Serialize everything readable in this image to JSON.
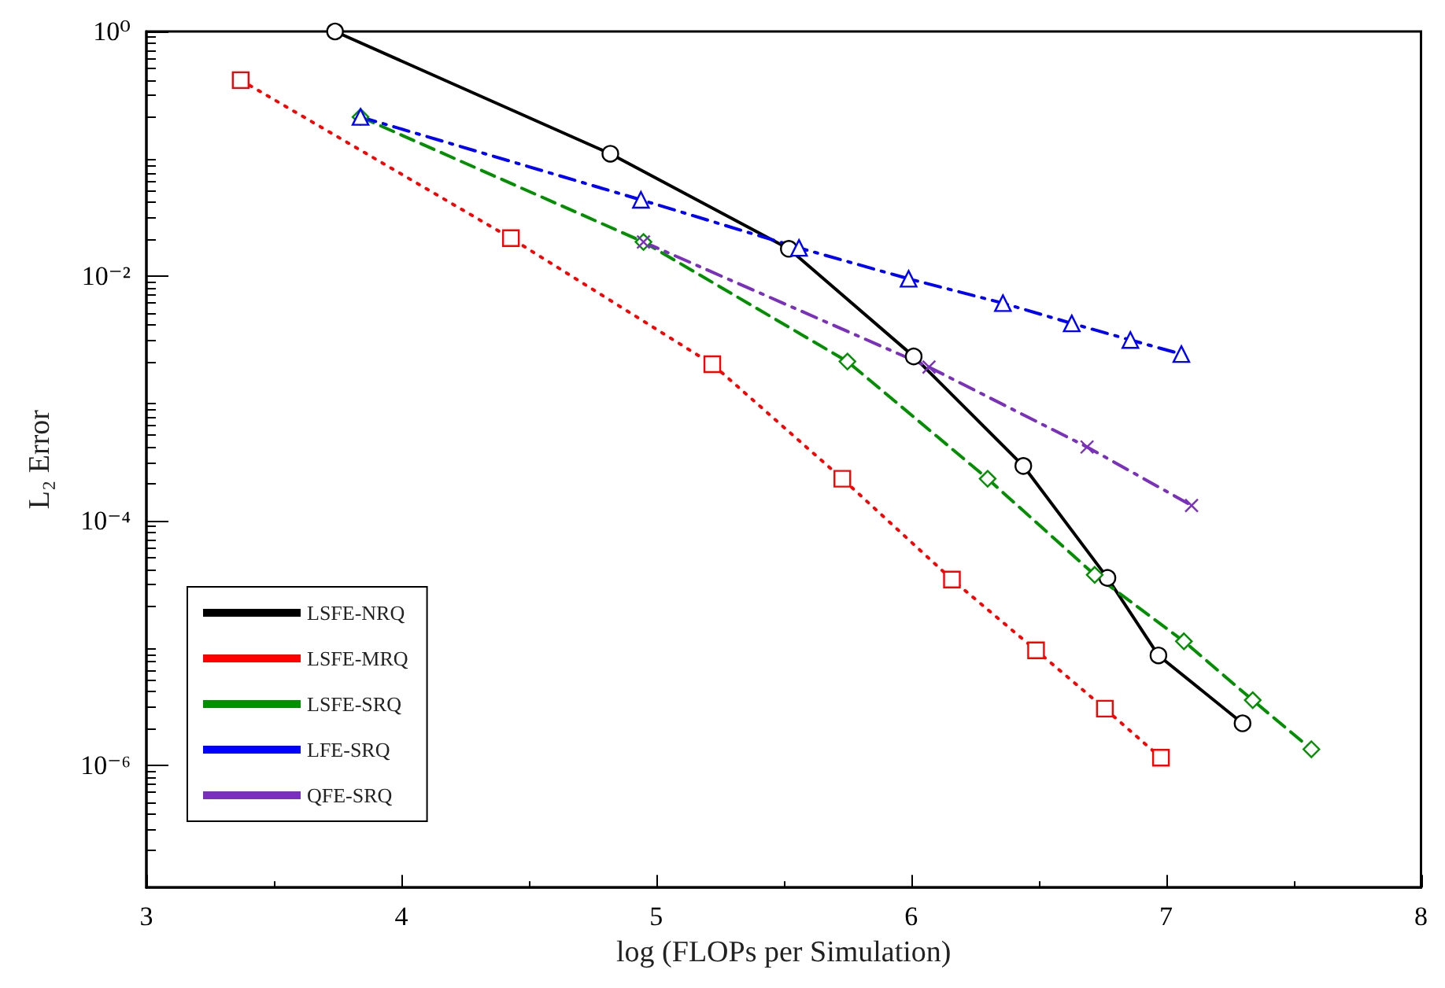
{
  "chart_data": {
    "type": "line",
    "xlabel": "log (FLOPs per Simulation)",
    "ylabel": "L₂ Error",
    "log": "y",
    "xlim": [
      3,
      8
    ],
    "xticks": [
      3,
      4,
      5,
      6,
      7,
      8
    ],
    "ylim": [
      1e-07,
      1
    ],
    "yticks": [
      {
        "value": 1,
        "label": "10⁰"
      },
      {
        "value": 0.01,
        "label": "10⁻²"
      },
      {
        "value": 0.0001,
        "label": "10⁻⁴"
      },
      {
        "value": 1e-06,
        "label": "10⁻⁶"
      }
    ],
    "grid": false,
    "legend": "bottom left",
    "series": [
      {
        "name": "LSFE-NRQ",
        "color": "#000000",
        "marker": "circle",
        "line_style": "solid",
        "x": [
          3.74,
          4.82,
          5.52,
          6.01,
          6.44,
          6.77,
          6.97,
          7.3
        ],
        "values": [
          1.0,
          0.1,
          0.0167,
          0.0022,
          0.00028,
          3.4e-05,
          7.9e-06,
          2.2e-06
        ]
      },
      {
        "name": "LSFE-MRQ",
        "color": "#ff0000",
        "marker": "square",
        "line_style": "dotted",
        "x": [
          3.37,
          4.43,
          5.22,
          5.73,
          6.16,
          6.49,
          6.76,
          6.98
        ],
        "values": [
          0.4,
          0.0204,
          0.0019,
          0.00022,
          3.3e-05,
          8.7e-06,
          2.9e-06,
          1.15e-06
        ]
      },
      {
        "name": "LSFE-SRQ",
        "color": "#009000",
        "marker": "diamond",
        "line_style": "dashed",
        "x": [
          3.84,
          4.95,
          5.75,
          6.3,
          6.72,
          7.07,
          7.34,
          7.57
        ],
        "values": [
          0.2,
          0.019,
          0.002,
          0.00022,
          3.6e-05,
          1.03e-05,
          3.4e-06,
          1.35e-06
        ]
      },
      {
        "name": "LFE-SRQ",
        "color": "#0000ff",
        "marker": "triangle",
        "line_style": "dashdot",
        "x": [
          3.84,
          4.94,
          5.56,
          5.99,
          6.36,
          6.63,
          6.86,
          7.06
        ],
        "values": [
          0.2,
          0.042,
          0.017,
          0.0095,
          0.006,
          0.0041,
          0.003,
          0.0023
        ]
      },
      {
        "name": "QFE-SRQ",
        "color": "#7b2fbe",
        "marker": "cross",
        "line_style": "dashdot",
        "x": [
          4.95,
          6.07,
          6.69,
          7.1
        ],
        "values": [
          0.019,
          0.0018,
          0.0004,
          0.000133
        ]
      }
    ]
  }
}
